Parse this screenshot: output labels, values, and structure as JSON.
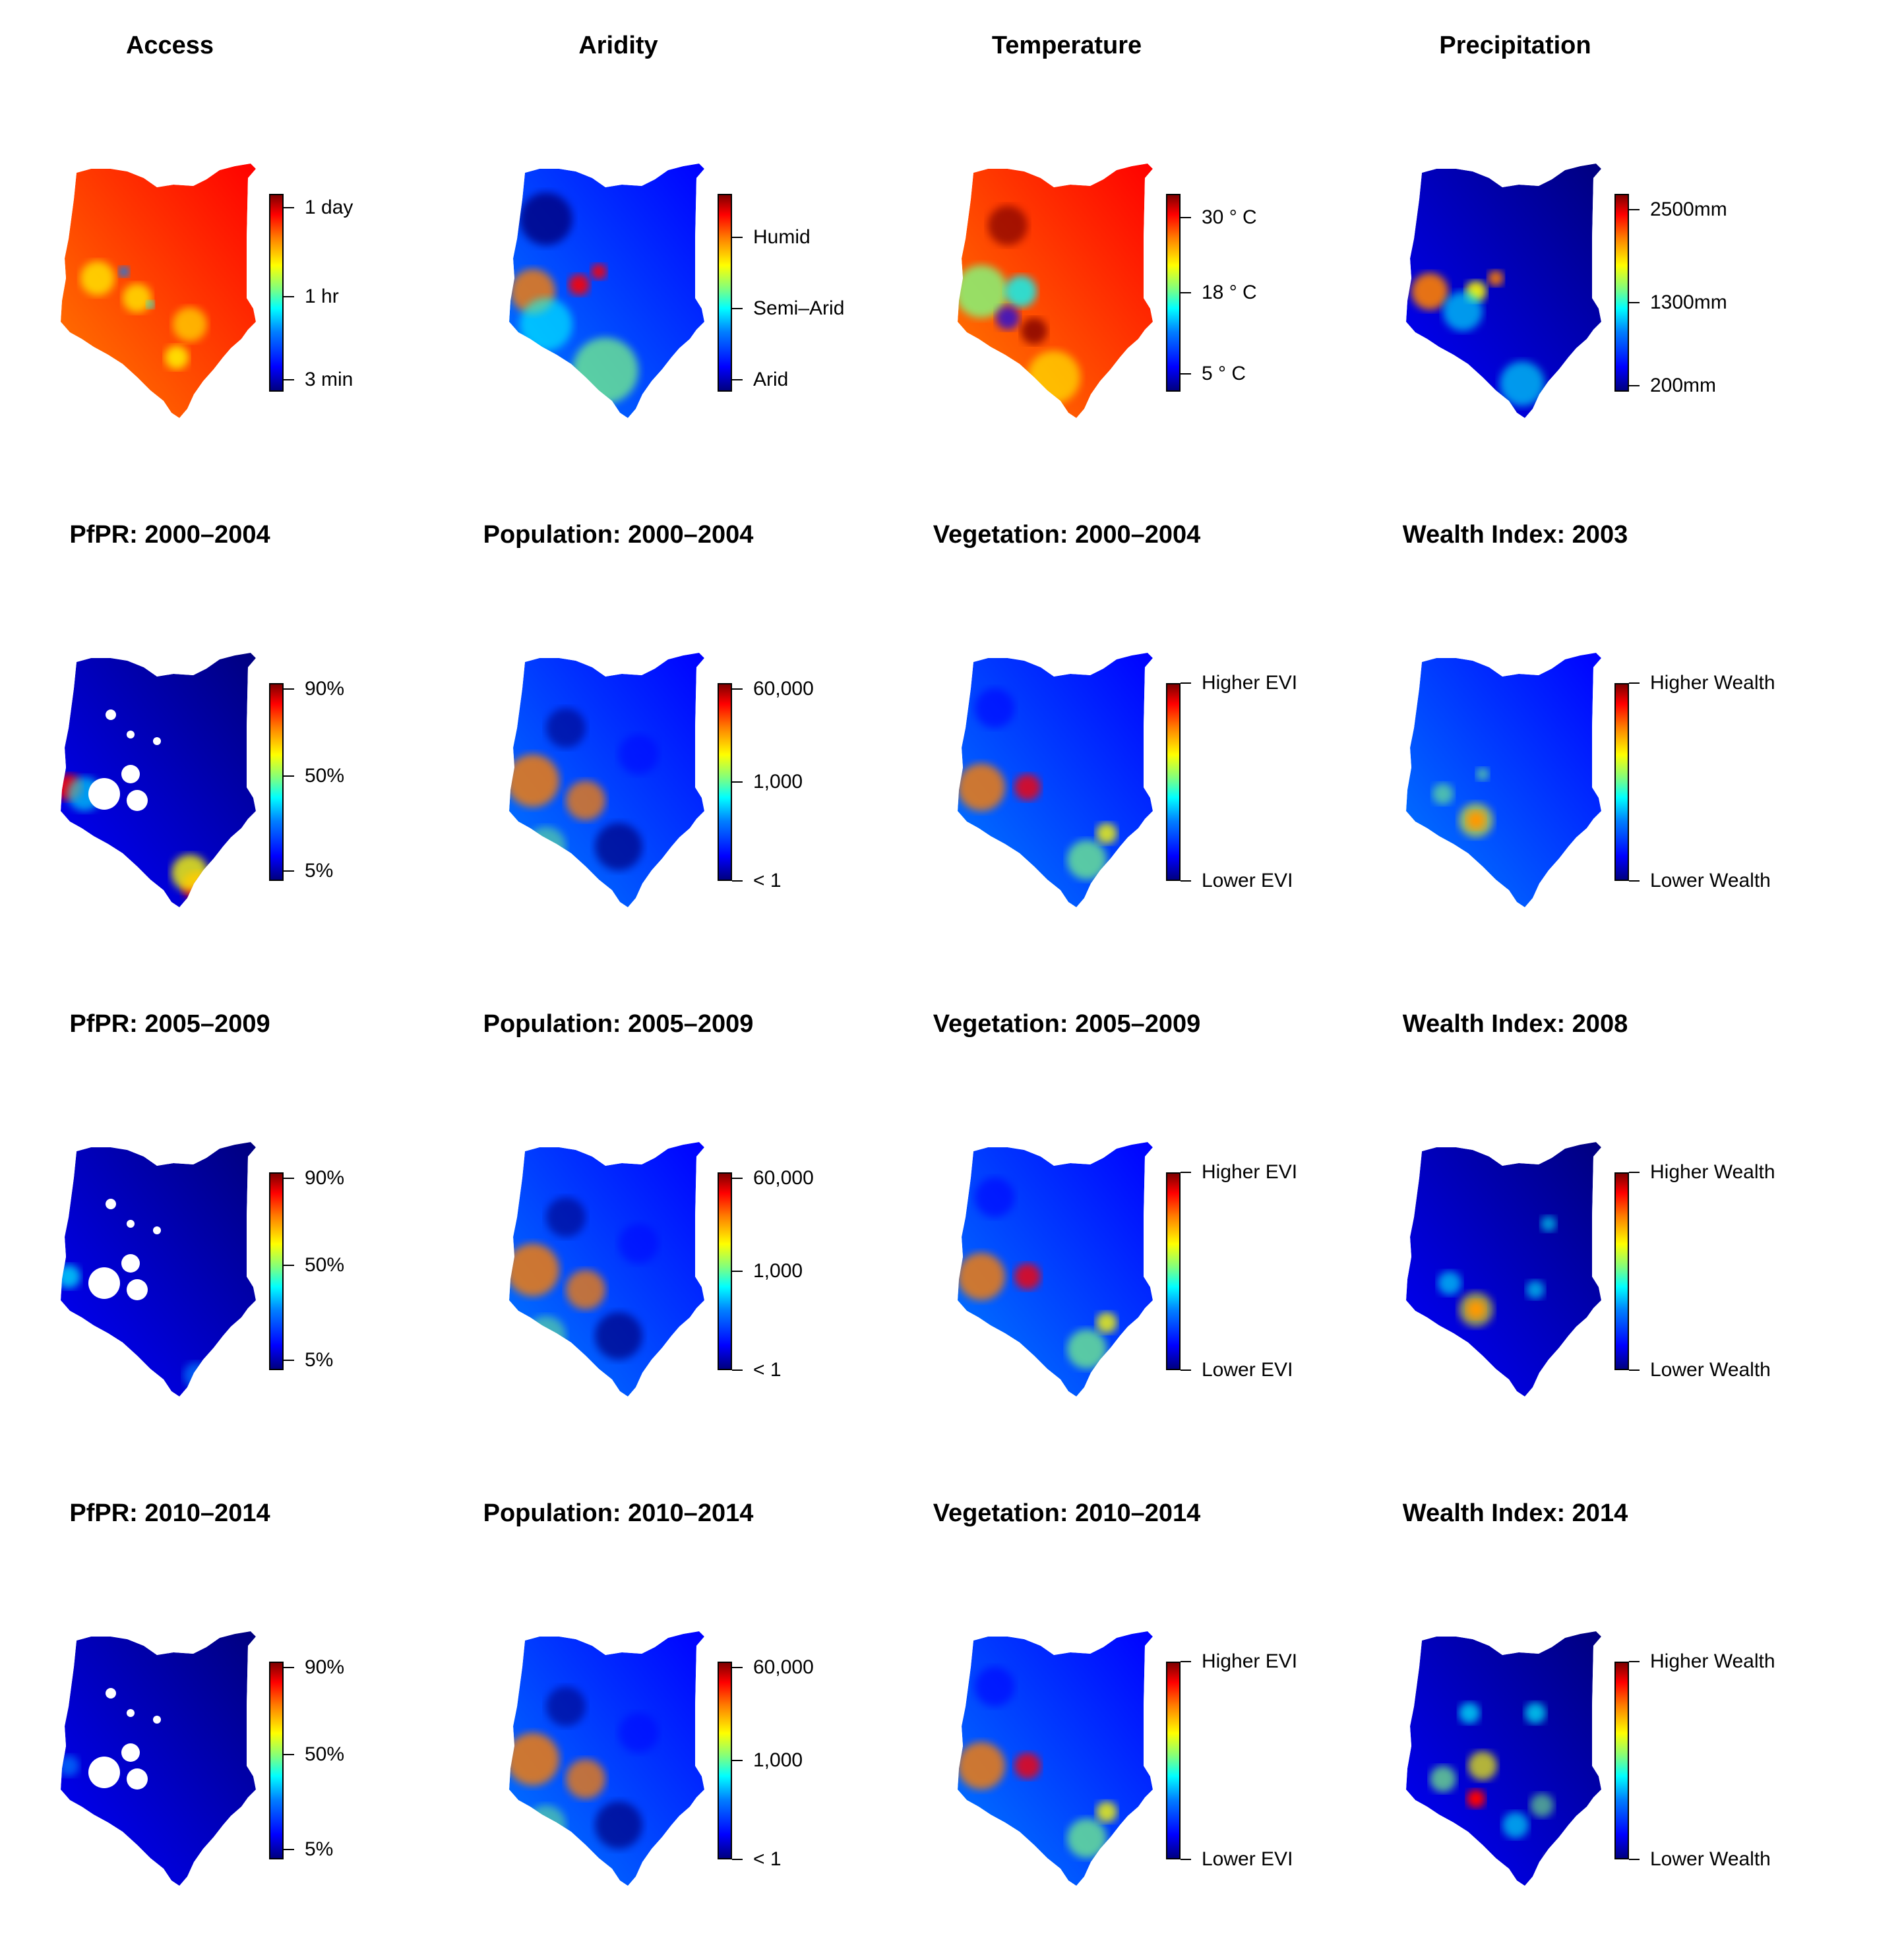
{
  "figure": {
    "panels": [
      {
        "id": "access",
        "title": "Access",
        "scheme": "access",
        "ticks": [
          {
            "label": "1 day",
            "f": 0.93
          },
          {
            "label": "1 hr",
            "f": 0.48
          },
          {
            "label": "3 min",
            "f": 0.06
          }
        ]
      },
      {
        "id": "aridity",
        "title": "Aridity",
        "scheme": "aridity",
        "ticks": [
          {
            "label": "Humid",
            "f": 0.78
          },
          {
            "label": "Semi–Arid",
            "f": 0.42
          },
          {
            "label": "Arid",
            "f": 0.06
          }
        ]
      },
      {
        "id": "temperature",
        "title": "Temperature",
        "scheme": "temp",
        "ticks": [
          {
            "label": "30 ° C",
            "f": 0.88
          },
          {
            "label": "18 ° C",
            "f": 0.5
          },
          {
            "label": "5 ° C",
            "f": 0.09
          }
        ]
      },
      {
        "id": "precipitation",
        "title": "Precipitation",
        "scheme": "precip",
        "ticks": [
          {
            "label": "2500mm",
            "f": 0.92
          },
          {
            "label": "1300mm",
            "f": 0.45
          },
          {
            "label": "200mm",
            "f": 0.03
          }
        ]
      },
      {
        "id": "pfpr-2000",
        "title": "PfPR: 2000–2004",
        "scheme": "pfpr1",
        "ticks": [
          {
            "label": "90%",
            "f": 0.97
          },
          {
            "label": "50%",
            "f": 0.53
          },
          {
            "label": "5%",
            "f": 0.05
          }
        ]
      },
      {
        "id": "pop-2000",
        "title": "Population: 2000–2004",
        "scheme": "pop",
        "ticks": [
          {
            "label": "60,000",
            "f": 0.97
          },
          {
            "label": "1,000",
            "f": 0.5
          },
          {
            "label": "< 1",
            "f": 0.0
          }
        ]
      },
      {
        "id": "veg-2000",
        "title": "Vegetation: 2000–2004",
        "scheme": "veg",
        "ticks": [
          {
            "label": "Higher EVI",
            "f": 1.0
          },
          {
            "label": "Lower EVI",
            "f": 0.0
          }
        ]
      },
      {
        "id": "wealth-2003",
        "title": "Wealth Index: 2003",
        "scheme": "wealth1",
        "ticks": [
          {
            "label": "Higher Wealth",
            "f": 1.0
          },
          {
            "label": "Lower Wealth",
            "f": 0.0
          }
        ]
      },
      {
        "id": "pfpr-2005",
        "title": "PfPR: 2005–2009",
        "scheme": "pfpr2",
        "ticks": [
          {
            "label": "90%",
            "f": 0.97
          },
          {
            "label": "50%",
            "f": 0.53
          },
          {
            "label": "5%",
            "f": 0.05
          }
        ]
      },
      {
        "id": "pop-2005",
        "title": "Population: 2005–2009",
        "scheme": "pop",
        "ticks": [
          {
            "label": "60,000",
            "f": 0.97
          },
          {
            "label": "1,000",
            "f": 0.5
          },
          {
            "label": "< 1",
            "f": 0.0
          }
        ]
      },
      {
        "id": "veg-2005",
        "title": "Vegetation: 2005–2009",
        "scheme": "veg",
        "ticks": [
          {
            "label": "Higher EVI",
            "f": 1.0
          },
          {
            "label": "Lower EVI",
            "f": 0.0
          }
        ]
      },
      {
        "id": "wealth-2008",
        "title": "Wealth Index: 2008",
        "scheme": "wealth2",
        "ticks": [
          {
            "label": "Higher Wealth",
            "f": 1.0
          },
          {
            "label": "Lower Wealth",
            "f": 0.0
          }
        ]
      },
      {
        "id": "pfpr-2010",
        "title": "PfPR: 2010–2014",
        "scheme": "pfpr3",
        "ticks": [
          {
            "label": "90%",
            "f": 0.97
          },
          {
            "label": "50%",
            "f": 0.53
          },
          {
            "label": "5%",
            "f": 0.05
          }
        ]
      },
      {
        "id": "pop-2010",
        "title": "Population: 2010–2014",
        "scheme": "pop",
        "ticks": [
          {
            "label": "60,000",
            "f": 0.97
          },
          {
            "label": "1,000",
            "f": 0.5
          },
          {
            "label": "< 1",
            "f": 0.0
          }
        ]
      },
      {
        "id": "veg-2010",
        "title": "Vegetation: 2010–2014",
        "scheme": "veg",
        "ticks": [
          {
            "label": "Higher EVI",
            "f": 1.0
          },
          {
            "label": "Lower EVI",
            "f": 0.0
          }
        ]
      },
      {
        "id": "wealth-2014",
        "title": "Wealth Index: 2014",
        "scheme": "wealth3",
        "ticks": [
          {
            "label": "Higher Wealth",
            "f": 1.0
          },
          {
            "label": "Lower Wealth",
            "f": 0.0
          }
        ]
      }
    ],
    "colors": {
      "dark_blue": "#00007f",
      "blue": "#0000ff",
      "light_blue": "#007fff",
      "cyan": "#00ffff",
      "green": "#7fff7f",
      "yellow": "#ffff00",
      "orange": "#ff7f00",
      "red": "#ff0000",
      "dark_red": "#7f0000"
    }
  }
}
